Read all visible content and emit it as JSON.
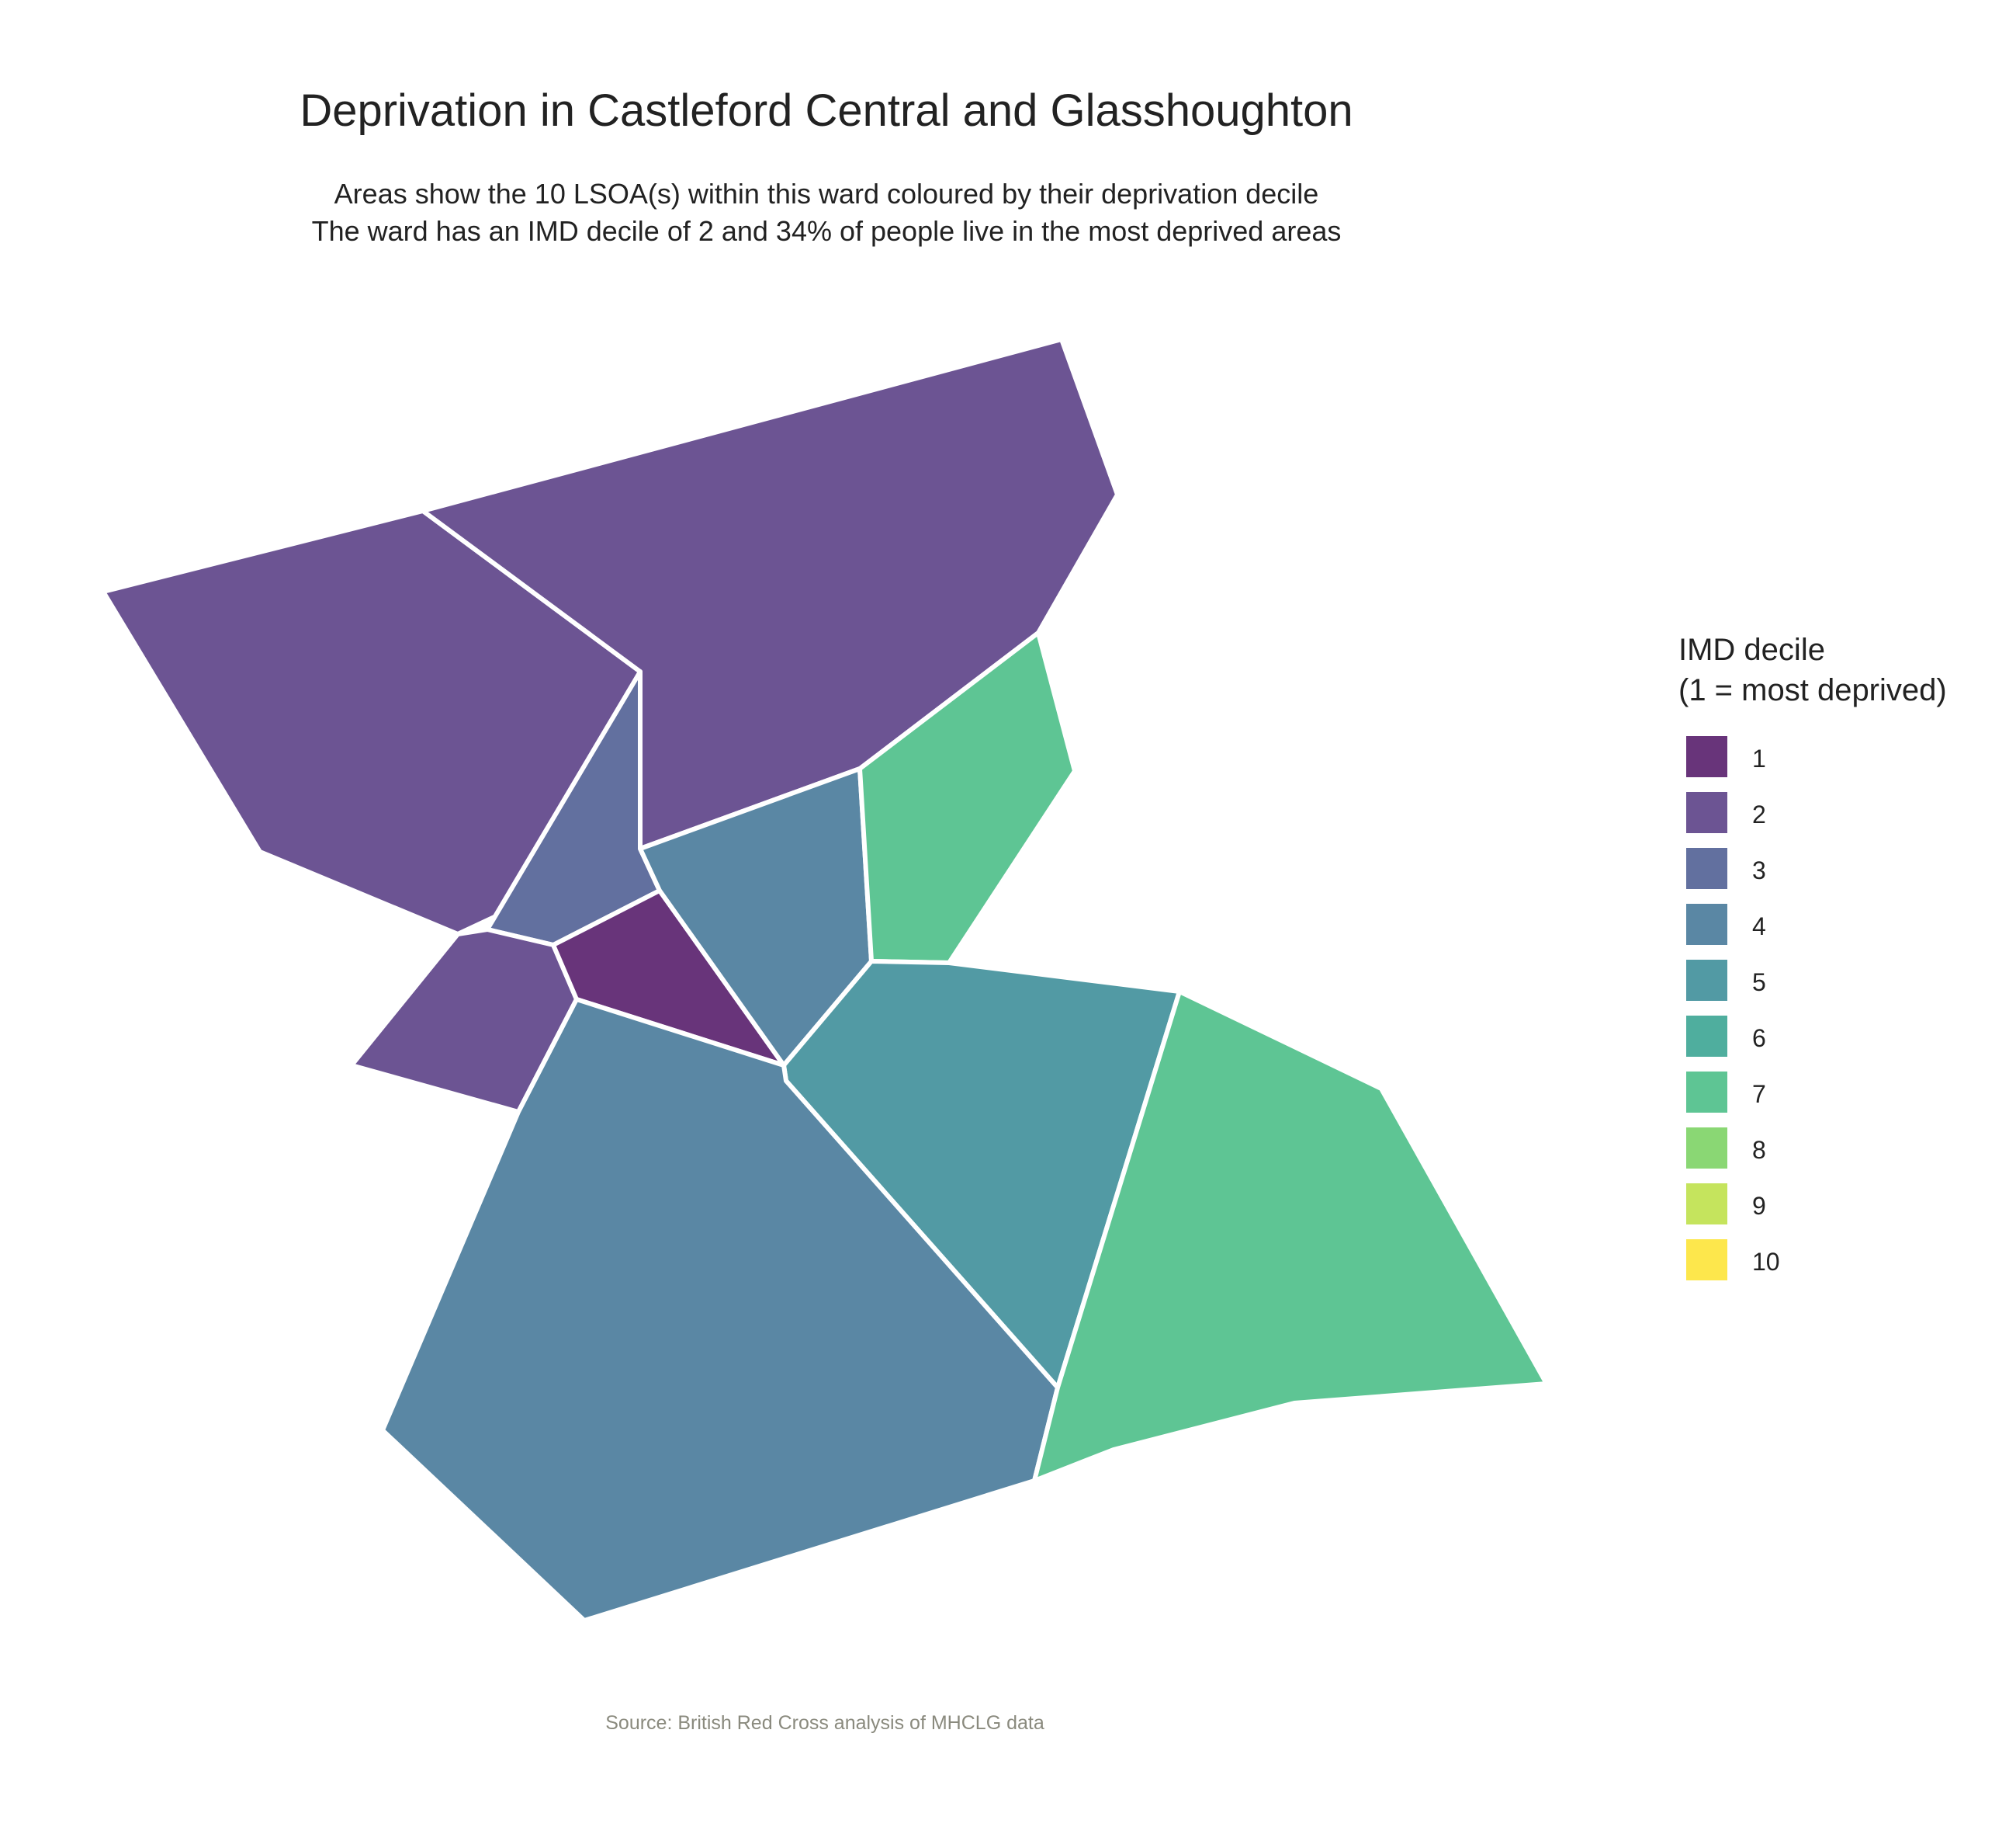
{
  "title": "Deprivation in Castleford Central and Glasshoughton",
  "subtitle_lines": [
    "Areas show the 10 LSOA(s) within this ward coloured by their deprivation decile",
    "The ward has an IMD decile of 2 and 34% of people live in the most deprived areas"
  ],
  "caption": "Source: British Red Cross analysis of MHCLG data",
  "legend": {
    "title_lines": [
      "IMD decile",
      "(1 = most deprived)"
    ],
    "items": [
      {
        "label": "1",
        "color": "#68347a"
      },
      {
        "label": "2",
        "color": "#6c5493"
      },
      {
        "label": "3",
        "color": "#62709f"
      },
      {
        "label": "4",
        "color": "#5a87a4"
      },
      {
        "label": "5",
        "color": "#529aa4"
      },
      {
        "label": "6",
        "color": "#4fae9e"
      },
      {
        "label": "7",
        "color": "#5ec594"
      },
      {
        "label": "8",
        "color": "#8ad774"
      },
      {
        "label": "9",
        "color": "#c5e45d"
      },
      {
        "label": "10",
        "color": "#fde74c"
      }
    ]
  },
  "areas": [
    {
      "decile": 2
    },
    {
      "decile": 2
    },
    {
      "decile": 3
    },
    {
      "decile": 2
    },
    {
      "decile": 1
    },
    {
      "decile": 4
    },
    {
      "decile": 7
    },
    {
      "decile": 5
    },
    {
      "decile": 4
    },
    {
      "decile": 7
    }
  ]
}
